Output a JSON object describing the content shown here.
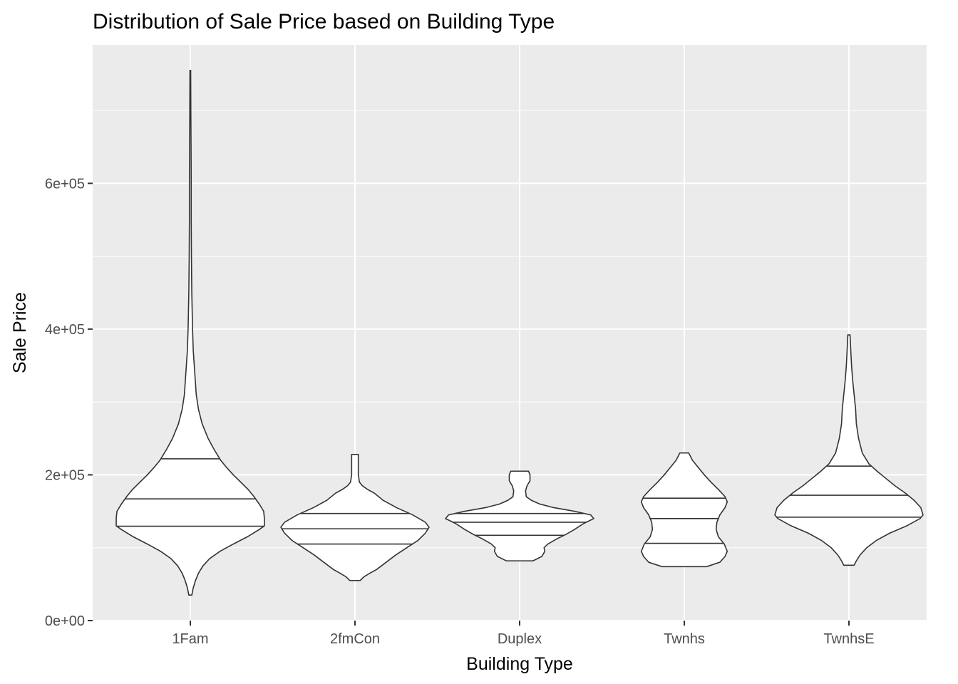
{
  "chart_data": {
    "type": "violin",
    "title": "Distribution of Sale Price based on Building Type",
    "xlabel": "Building Type",
    "ylabel": "Sale Price",
    "categories": [
      "1Fam",
      "2fmCon",
      "Duplex",
      "Twnhs",
      "TwnhsE"
    ],
    "ylim": [
      0,
      790000
    ],
    "yticks": [
      0,
      200000,
      400000,
      600000
    ],
    "ytick_labels": [
      "0e+00",
      "2e+05",
      "4e+05",
      "6e+05"
    ],
    "draw_quantiles": [
      0.25,
      0.5,
      0.75
    ],
    "grid": true,
    "legend": "none",
    "colors": {
      "panel": "#ebebeb",
      "fill": "#ffffff",
      "outline": "#333333",
      "grid": "#ffffff"
    },
    "violins": [
      {
        "category": "1Fam",
        "min": 35000,
        "max": 755000,
        "quantiles": [
          129500,
          167000,
          222000
        ],
        "profile": [
          [
            35000,
            0.02
          ],
          [
            45000,
            0.04
          ],
          [
            55000,
            0.07
          ],
          [
            65000,
            0.11
          ],
          [
            75000,
            0.17
          ],
          [
            85000,
            0.26
          ],
          [
            95000,
            0.4
          ],
          [
            105000,
            0.58
          ],
          [
            115000,
            0.77
          ],
          [
            125000,
            0.93
          ],
          [
            130000,
            1.0
          ],
          [
            140000,
            1.0
          ],
          [
            150000,
            0.99
          ],
          [
            160000,
            0.93
          ],
          [
            170000,
            0.86
          ],
          [
            180000,
            0.78
          ],
          [
            190000,
            0.68
          ],
          [
            200000,
            0.58
          ],
          [
            210000,
            0.49
          ],
          [
            220000,
            0.41
          ],
          [
            235000,
            0.32
          ],
          [
            250000,
            0.24
          ],
          [
            270000,
            0.16
          ],
          [
            290000,
            0.11
          ],
          [
            310000,
            0.08
          ],
          [
            340000,
            0.06
          ],
          [
            370000,
            0.04
          ],
          [
            400000,
            0.03
          ],
          [
            450000,
            0.02
          ],
          [
            500000,
            0.015
          ],
          [
            550000,
            0.012
          ],
          [
            600000,
            0.012
          ],
          [
            650000,
            0.01
          ],
          [
            700000,
            0.007
          ],
          [
            755000,
            0.005
          ]
        ]
      },
      {
        "category": "2fmCon",
        "min": 55000,
        "max": 228000,
        "quantiles": [
          105000,
          126000,
          147000
        ],
        "profile": [
          [
            55000,
            0.07
          ],
          [
            60000,
            0.12
          ],
          [
            65000,
            0.2
          ],
          [
            70000,
            0.29
          ],
          [
            80000,
            0.42
          ],
          [
            90000,
            0.55
          ],
          [
            100000,
            0.7
          ],
          [
            110000,
            0.85
          ],
          [
            120000,
            0.95
          ],
          [
            128000,
            1.0
          ],
          [
            135000,
            0.95
          ],
          [
            145000,
            0.78
          ],
          [
            155000,
            0.56
          ],
          [
            165000,
            0.38
          ],
          [
            175000,
            0.26
          ],
          [
            180000,
            0.17
          ],
          [
            185000,
            0.1
          ],
          [
            190000,
            0.06
          ],
          [
            200000,
            0.045
          ],
          [
            210000,
            0.045
          ],
          [
            220000,
            0.045
          ],
          [
            228000,
            0.045
          ]
        ]
      },
      {
        "category": "Duplex",
        "min": 82000,
        "max": 205000,
        "quantiles": [
          117000,
          135000,
          147000
        ],
        "profile": [
          [
            82000,
            0.18
          ],
          [
            88000,
            0.3
          ],
          [
            95000,
            0.34
          ],
          [
            100000,
            0.33
          ],
          [
            105000,
            0.38
          ],
          [
            112000,
            0.5
          ],
          [
            118000,
            0.62
          ],
          [
            125000,
            0.74
          ],
          [
            133000,
            0.86
          ],
          [
            140000,
            1.0
          ],
          [
            145000,
            0.96
          ],
          [
            150000,
            0.74
          ],
          [
            155000,
            0.46
          ],
          [
            160000,
            0.27
          ],
          [
            165000,
            0.16
          ],
          [
            170000,
            0.09
          ],
          [
            178000,
            0.08
          ],
          [
            185000,
            0.1
          ],
          [
            192000,
            0.14
          ],
          [
            200000,
            0.14
          ],
          [
            205000,
            0.12
          ]
        ]
      },
      {
        "category": "Twnhs",
        "min": 74000,
        "max": 230000,
        "quantiles": [
          106000,
          140000,
          168000
        ],
        "profile": [
          [
            74000,
            0.3
          ],
          [
            80000,
            0.48
          ],
          [
            88000,
            0.55
          ],
          [
            95000,
            0.58
          ],
          [
            105000,
            0.54
          ],
          [
            115000,
            0.46
          ],
          [
            125000,
            0.43
          ],
          [
            135000,
            0.44
          ],
          [
            145000,
            0.48
          ],
          [
            155000,
            0.55
          ],
          [
            163000,
            0.58
          ],
          [
            170000,
            0.55
          ],
          [
            180000,
            0.46
          ],
          [
            190000,
            0.36
          ],
          [
            200000,
            0.27
          ],
          [
            210000,
            0.19
          ],
          [
            220000,
            0.11
          ],
          [
            230000,
            0.06
          ]
        ]
      },
      {
        "category": "TwnhsE",
        "min": 76000,
        "max": 392000,
        "quantiles": [
          142000,
          172000,
          212000
        ],
        "profile": [
          [
            76000,
            0.07
          ],
          [
            82000,
            0.1
          ],
          [
            90000,
            0.15
          ],
          [
            100000,
            0.24
          ],
          [
            110000,
            0.37
          ],
          [
            120000,
            0.55
          ],
          [
            130000,
            0.78
          ],
          [
            140000,
            0.96
          ],
          [
            145000,
            1.0
          ],
          [
            155000,
            0.97
          ],
          [
            165000,
            0.88
          ],
          [
            175000,
            0.76
          ],
          [
            185000,
            0.62
          ],
          [
            195000,
            0.5
          ],
          [
            205000,
            0.38
          ],
          [
            215000,
            0.27
          ],
          [
            230000,
            0.18
          ],
          [
            250000,
            0.13
          ],
          [
            270000,
            0.1
          ],
          [
            290000,
            0.09
          ],
          [
            310000,
            0.07
          ],
          [
            330000,
            0.05
          ],
          [
            350000,
            0.035
          ],
          [
            370000,
            0.025
          ],
          [
            392000,
            0.015
          ]
        ]
      }
    ]
  }
}
